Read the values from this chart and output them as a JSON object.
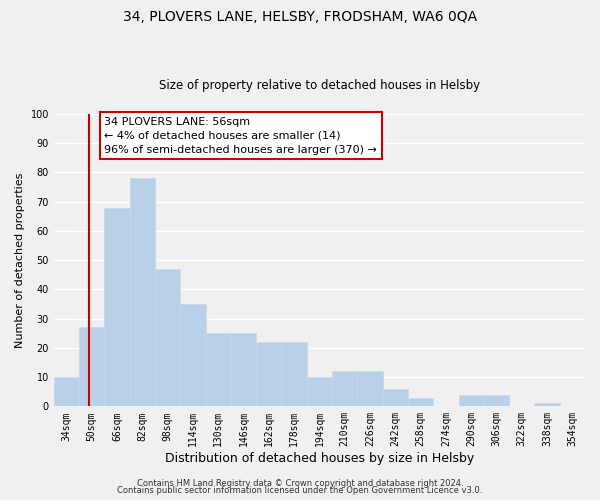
{
  "title1": "34, PLOVERS LANE, HELSBY, FRODSHAM, WA6 0QA",
  "title2": "Size of property relative to detached houses in Helsby",
  "xlabel": "Distribution of detached houses by size in Helsby",
  "ylabel": "Number of detached properties",
  "footer1": "Contains HM Land Registry data © Crown copyright and database right 2024.",
  "footer2": "Contains public sector information licensed under the Open Government Licence v3.0.",
  "annotation_line1": "34 PLOVERS LANE: 56sqm",
  "annotation_line2": "← 4% of detached houses are smaller (14)",
  "annotation_line3": "96% of semi-detached houses are larger (370) →",
  "bar_color": "#b8d0e8",
  "bar_edge_color": "#c8d8ec",
  "vline_color": "#cc0000",
  "categories": [
    "34sqm",
    "50sqm",
    "66sqm",
    "82sqm",
    "98sqm",
    "114sqm",
    "130sqm",
    "146sqm",
    "162sqm",
    "178sqm",
    "194sqm",
    "210sqm",
    "226sqm",
    "242sqm",
    "258sqm",
    "274sqm",
    "290sqm",
    "306sqm",
    "322sqm",
    "338sqm",
    "354sqm"
  ],
  "values": [
    10,
    27,
    68,
    78,
    47,
    35,
    25,
    25,
    22,
    22,
    10,
    12,
    12,
    6,
    3,
    0,
    4,
    4,
    0,
    1,
    0
  ],
  "ylim": [
    0,
    100
  ],
  "yticks": [
    0,
    10,
    20,
    30,
    40,
    50,
    60,
    70,
    80,
    90,
    100
  ],
  "bg_color": "#f0f0f0",
  "grid_color": "#ffffff",
  "box_edge_color": "#cc0000",
  "title1_fontsize": 10,
  "title2_fontsize": 8.5,
  "annotation_fontsize": 8,
  "xlabel_fontsize": 9,
  "ylabel_fontsize": 8,
  "tick_fontsize": 7,
  "footer_fontsize": 6
}
